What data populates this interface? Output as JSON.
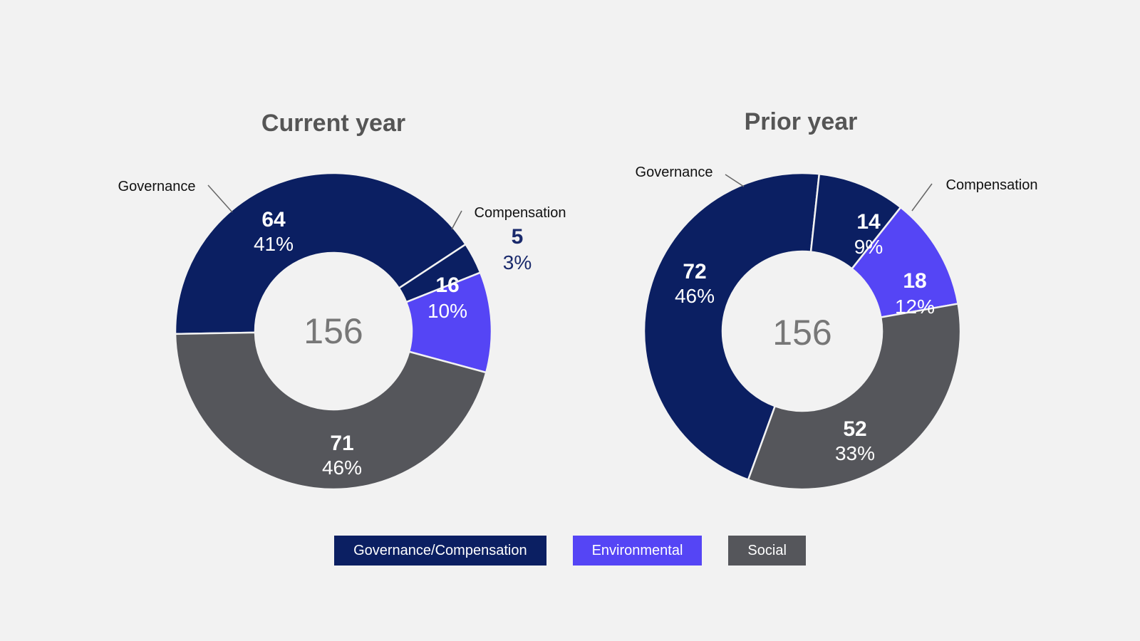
{
  "colors": {
    "governance_compensation": "#0b1f62",
    "environmental": "#5545f5",
    "social": "#55565b",
    "outside_label_value": "#1a2a6c"
  },
  "legend": {
    "items": [
      {
        "label": "Governance/Compensation",
        "color": "#0b1f62"
      },
      {
        "label": "Environmental",
        "color": "#5545f5"
      },
      {
        "label": "Social",
        "color": "#55565b"
      }
    ]
  },
  "chart_data": [
    {
      "type": "pie",
      "title": "Current year",
      "total": "156",
      "slices": [
        {
          "name": "Governance",
          "value": 64,
          "percent": "41%",
          "color": "#0b1f62",
          "callout": "Governance"
        },
        {
          "name": "Compensation",
          "value": 5,
          "percent": "3%",
          "color": "#0b1f62",
          "callout": "Compensation"
        },
        {
          "name": "Environmental",
          "value": 16,
          "percent": "10%",
          "color": "#5545f5",
          "callout": ""
        },
        {
          "name": "Social",
          "value": 71,
          "percent": "46%",
          "color": "#55565b",
          "callout": ""
        }
      ]
    },
    {
      "type": "pie",
      "title": "Prior year",
      "total": "156",
      "slices": [
        {
          "name": "Governance",
          "value": 72,
          "percent": "46%",
          "color": "#0b1f62",
          "callout": "Governance"
        },
        {
          "name": "Compensation",
          "value": 14,
          "percent": "9%",
          "color": "#0b1f62",
          "callout": "Compensation"
        },
        {
          "name": "Environmental",
          "value": 18,
          "percent": "12%",
          "color": "#5545f5",
          "callout": ""
        },
        {
          "name": "Social",
          "value": 52,
          "percent": "33%",
          "color": "#55565b",
          "callout": ""
        }
      ]
    }
  ]
}
